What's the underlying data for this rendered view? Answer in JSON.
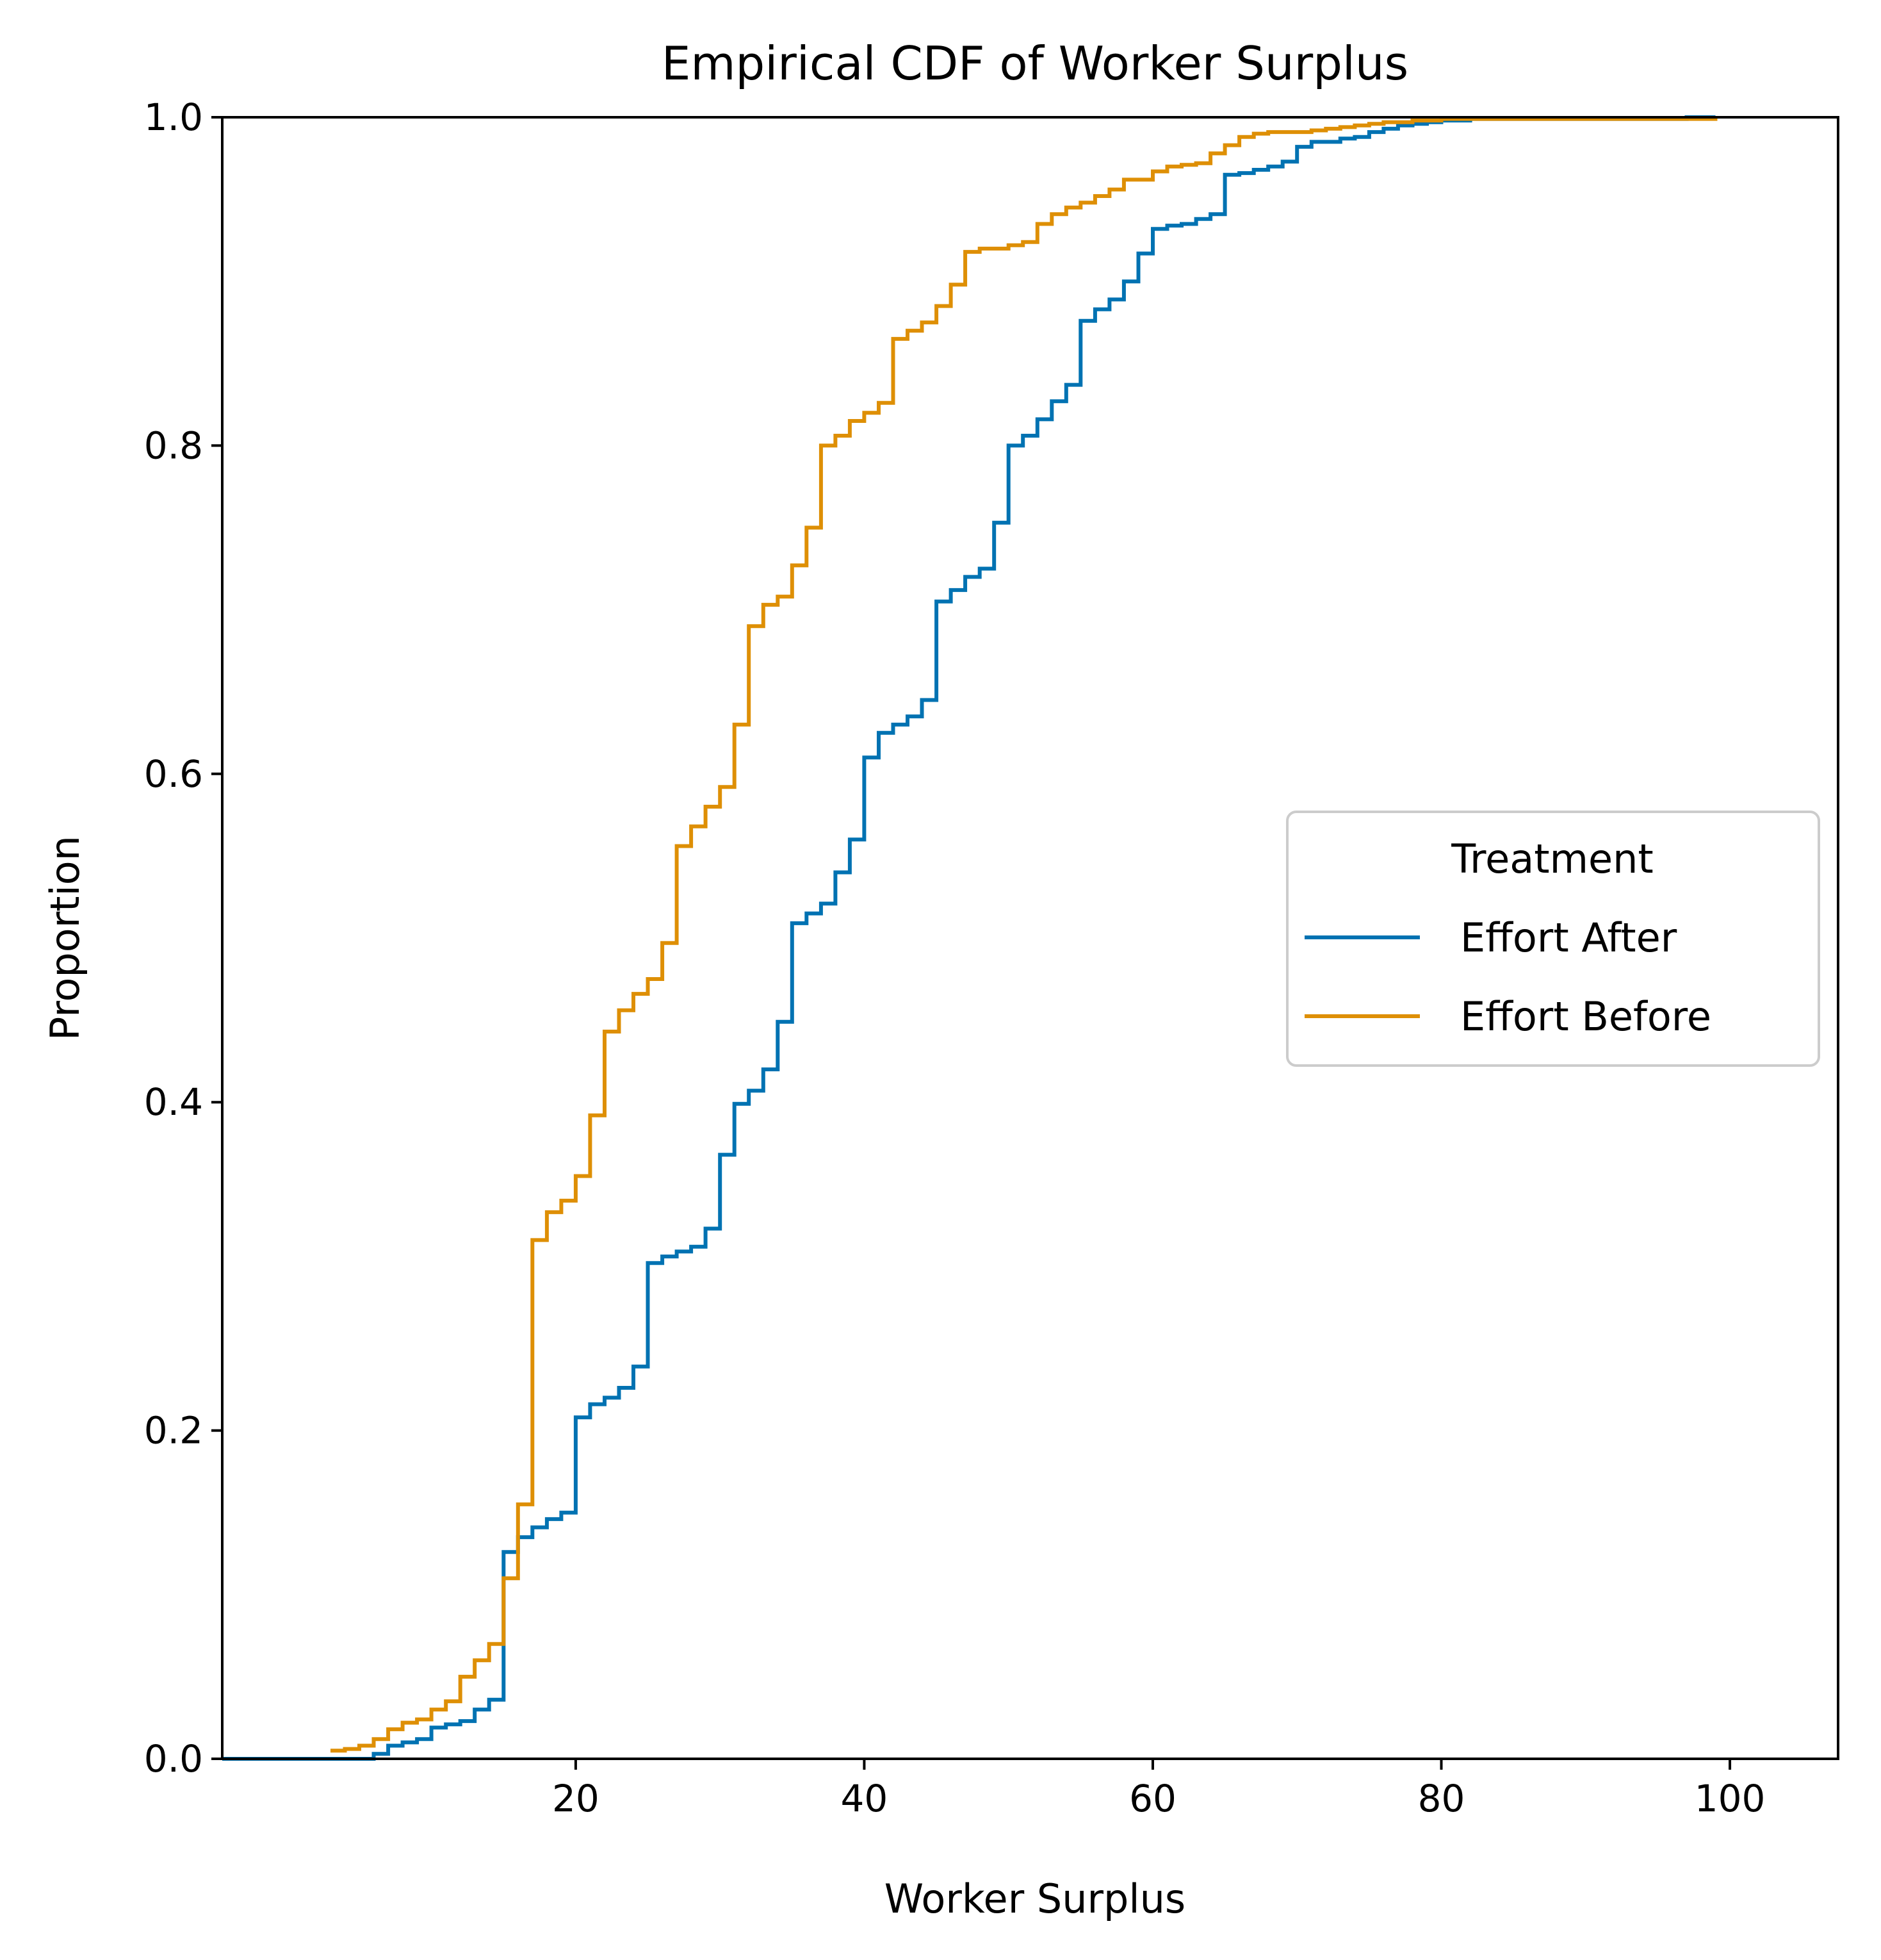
{
  "chart_data": {
    "type": "line",
    "subtype": "ecdf-step",
    "title": "Empirical CDF of Worker Surplus",
    "xlabel": "Worker Surplus",
    "ylabel": "Proportion",
    "xlim": [
      -4.5,
      107.5
    ],
    "ylim": [
      0.0,
      1.0
    ],
    "xticks": [
      20,
      40,
      60,
      80,
      100
    ],
    "xtick_labels": [
      "20",
      "40",
      "60",
      "80",
      "100"
    ],
    "yticks": [
      0.0,
      0.2,
      0.4,
      0.6,
      0.8,
      1.0
    ],
    "ytick_labels": [
      "0.0",
      "0.2",
      "0.4",
      "0.6",
      "0.8",
      "1.0"
    ],
    "grid": false,
    "legend": {
      "title": "Treatment",
      "placement": "center-right",
      "entries": [
        "Effort After",
        "Effort Before"
      ]
    },
    "series": [
      {
        "name": "Effort After",
        "color": "#0072b2",
        "x": [
          -4.5,
          6,
          7,
          8,
          9,
          10,
          11,
          12,
          13,
          14,
          15,
          16,
          17,
          18,
          19,
          20,
          21,
          22,
          23,
          24,
          25,
          26,
          27,
          28,
          29,
          30,
          31,
          32,
          33,
          34,
          35,
          36,
          37,
          38,
          39,
          40,
          41,
          42,
          43,
          44,
          45,
          46,
          47,
          48,
          49,
          50,
          51,
          52,
          53,
          54,
          55,
          56,
          57,
          58,
          59,
          60,
          61,
          62,
          63,
          64,
          65,
          66,
          67,
          68,
          69,
          70,
          71,
          72,
          73,
          74,
          75,
          76,
          77,
          78,
          79,
          80,
          81,
          82,
          83,
          84,
          85,
          86,
          87,
          88,
          89,
          90,
          91,
          92,
          93,
          94,
          95,
          96,
          97,
          98,
          99
        ],
        "y": [
          0.0,
          0.003,
          0.008,
          0.01,
          0.012,
          0.019,
          0.021,
          0.023,
          0.03,
          0.036,
          0.126,
          0.135,
          0.141,
          0.146,
          0.15,
          0.208,
          0.216,
          0.22,
          0.226,
          0.239,
          0.302,
          0.306,
          0.309,
          0.312,
          0.323,
          0.368,
          0.399,
          0.407,
          0.42,
          0.449,
          0.509,
          0.515,
          0.521,
          0.54,
          0.56,
          0.61,
          0.625,
          0.63,
          0.635,
          0.645,
          0.705,
          0.712,
          0.72,
          0.725,
          0.753,
          0.8,
          0.806,
          0.816,
          0.827,
          0.837,
          0.876,
          0.883,
          0.889,
          0.9,
          0.917,
          0.932,
          0.934,
          0.935,
          0.938,
          0.941,
          0.965,
          0.966,
          0.968,
          0.97,
          0.973,
          0.982,
          0.985,
          0.985,
          0.987,
          0.988,
          0.991,
          0.993,
          0.995,
          0.996,
          0.997,
          0.998,
          0.998,
          0.999,
          0.999,
          0.999,
          0.999,
          0.999,
          0.999,
          0.999,
          0.999,
          0.999,
          0.999,
          0.999,
          0.999,
          0.999,
          0.999,
          0.999,
          1.0,
          1.0,
          1.0
        ]
      },
      {
        "name": "Effort Before",
        "color": "#de8f05",
        "x": [
          3,
          4,
          5,
          6,
          7,
          8,
          9,
          10,
          11,
          12,
          13,
          14,
          15,
          16,
          17,
          18,
          19,
          20,
          21,
          22,
          23,
          24,
          25,
          26,
          27,
          28,
          29,
          30,
          31,
          32,
          33,
          34,
          35,
          36,
          37,
          38,
          39,
          40,
          41,
          42,
          43,
          44,
          45,
          46,
          47,
          48,
          49,
          50,
          51,
          52,
          53,
          54,
          55,
          56,
          57,
          58,
          59,
          60,
          61,
          62,
          63,
          64,
          65,
          66,
          67,
          68,
          69,
          70,
          71,
          72,
          73,
          74,
          75,
          76,
          77,
          78,
          79,
          80,
          81,
          82,
          83,
          84,
          85,
          86,
          87,
          88,
          89,
          90,
          91,
          92,
          93,
          94,
          95,
          96,
          97,
          98,
          99
        ],
        "y": [
          0.005,
          0.006,
          0.008,
          0.012,
          0.018,
          0.022,
          0.024,
          0.03,
          0.035,
          0.05,
          0.06,
          0.07,
          0.11,
          0.155,
          0.316,
          0.333,
          0.34,
          0.355,
          0.392,
          0.443,
          0.456,
          0.466,
          0.475,
          0.497,
          0.556,
          0.568,
          0.58,
          0.592,
          0.63,
          0.69,
          0.703,
          0.708,
          0.727,
          0.75,
          0.8,
          0.806,
          0.815,
          0.82,
          0.826,
          0.865,
          0.87,
          0.875,
          0.885,
          0.898,
          0.918,
          0.92,
          0.92,
          0.922,
          0.924,
          0.935,
          0.941,
          0.945,
          0.948,
          0.952,
          0.956,
          0.962,
          0.962,
          0.967,
          0.97,
          0.971,
          0.972,
          0.978,
          0.983,
          0.988,
          0.99,
          0.991,
          0.991,
          0.991,
          0.992,
          0.993,
          0.994,
          0.995,
          0.996,
          0.997,
          0.997,
          0.998,
          0.998,
          0.999,
          0.999,
          0.999,
          0.999,
          0.999,
          0.999,
          0.999,
          0.999,
          0.999,
          0.999,
          0.999,
          0.999,
          0.999,
          0.999,
          0.999,
          0.999,
          0.999,
          0.999,
          0.999,
          1.0
        ]
      }
    ]
  }
}
